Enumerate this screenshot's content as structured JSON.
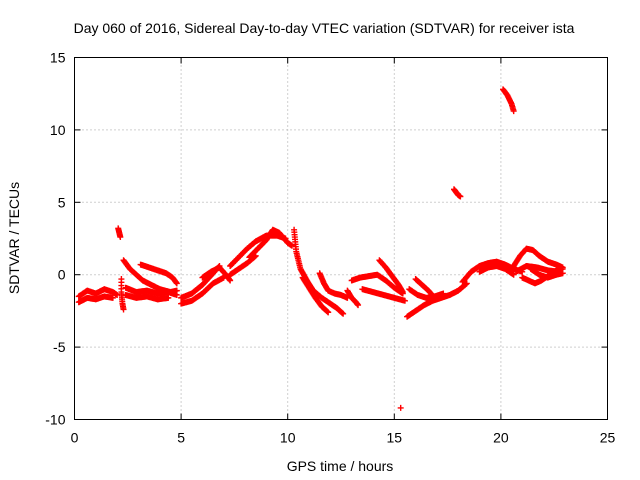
{
  "chart_data": {
    "type": "scatter",
    "title": "Day 060 of 2016, Sidereal Day-to-day VTEC variation (SDTVAR) for receiver ista",
    "xlabel": "GPS time / hours",
    "ylabel": "SDTVAR / TECUs",
    "xlim": [
      0,
      25
    ],
    "ylim": [
      -10,
      15
    ],
    "xticks": [
      0,
      5,
      10,
      15,
      20,
      25
    ],
    "yticks": [
      -10,
      -5,
      0,
      5,
      10,
      15
    ],
    "grid": true,
    "marker": "+",
    "color": "#ff0000",
    "segments": [
      {
        "name": "s1",
        "points": [
          [
            0.2,
            -1.5
          ],
          [
            0.6,
            -1.1
          ],
          [
            1.0,
            -1.3
          ],
          [
            1.4,
            -1.0
          ],
          [
            1.8,
            -1.2
          ],
          [
            2.0,
            -1.4
          ]
        ]
      },
      {
        "name": "s2",
        "points": [
          [
            0.2,
            -1.9
          ],
          [
            0.6,
            -1.6
          ],
          [
            1.0,
            -1.7
          ],
          [
            1.4,
            -1.5
          ],
          [
            1.8,
            -1.6
          ]
        ]
      },
      {
        "name": "s3",
        "points": [
          [
            2.05,
            3.2
          ],
          [
            2.1,
            2.9
          ],
          [
            2.15,
            2.6
          ]
        ]
      },
      {
        "name": "s4",
        "points": [
          [
            2.2,
            -0.3
          ],
          [
            2.2,
            -1.2
          ],
          [
            2.25,
            -2.0
          ],
          [
            2.3,
            -2.4
          ]
        ]
      },
      {
        "name": "s5",
        "points": [
          [
            2.3,
            1.0
          ],
          [
            2.6,
            0.4
          ],
          [
            2.9,
            0.0
          ],
          [
            3.2,
            -0.4
          ],
          [
            3.6,
            -0.7
          ],
          [
            4.0,
            -1.0
          ],
          [
            4.5,
            -1.2
          ],
          [
            4.8,
            -1.1
          ]
        ]
      },
      {
        "name": "s6",
        "points": [
          [
            2.4,
            -0.9
          ],
          [
            2.9,
            -1.2
          ],
          [
            3.4,
            -1.1
          ],
          [
            3.9,
            -1.3
          ],
          [
            4.4,
            -1.2
          ],
          [
            4.8,
            -1.4
          ]
        ]
      },
      {
        "name": "s7",
        "points": [
          [
            2.4,
            -1.4
          ],
          [
            2.9,
            -1.6
          ],
          [
            3.4,
            -1.5
          ],
          [
            3.9,
            -1.7
          ],
          [
            4.4,
            -1.6
          ]
        ]
      },
      {
        "name": "s8",
        "points": [
          [
            3.1,
            0.7
          ],
          [
            3.5,
            0.5
          ],
          [
            3.9,
            0.3
          ],
          [
            4.3,
            0.1
          ],
          [
            4.6,
            -0.2
          ],
          [
            4.8,
            -0.6
          ]
        ]
      },
      {
        "name": "s9",
        "points": [
          [
            5.0,
            -1.6
          ],
          [
            5.5,
            -1.3
          ],
          [
            6.0,
            -0.7
          ],
          [
            6.5,
            0.1
          ],
          [
            6.8,
            0.6
          ]
        ]
      },
      {
        "name": "s10",
        "points": [
          [
            5.0,
            -2.0
          ],
          [
            5.5,
            -1.8
          ],
          [
            6.0,
            -1.3
          ],
          [
            6.5,
            -0.6
          ],
          [
            7.0,
            -0.2
          ]
        ]
      },
      {
        "name": "s11",
        "points": [
          [
            6.0,
            -0.2
          ],
          [
            6.4,
            0.2
          ],
          [
            6.8,
            0.5
          ],
          [
            7.1,
            0.0
          ],
          [
            7.3,
            -0.4
          ]
        ]
      },
      {
        "name": "s12",
        "points": [
          [
            7.3,
            0.6
          ],
          [
            7.7,
            1.2
          ],
          [
            8.1,
            1.8
          ],
          [
            8.5,
            2.3
          ],
          [
            9.0,
            2.7
          ],
          [
            9.5,
            2.7
          ],
          [
            9.9,
            2.5
          ]
        ]
      },
      {
        "name": "s13",
        "points": [
          [
            7.3,
            0.0
          ],
          [
            7.7,
            0.4
          ],
          [
            8.1,
            0.8
          ],
          [
            8.5,
            1.3
          ]
        ]
      },
      {
        "name": "s14",
        "points": [
          [
            8.2,
            1.2
          ],
          [
            8.6,
            1.8
          ],
          [
            9.0,
            2.4
          ],
          [
            9.3,
            3.1
          ],
          [
            9.6,
            2.9
          ],
          [
            10.0,
            2.2
          ],
          [
            10.2,
            2.0
          ]
        ]
      },
      {
        "name": "s15",
        "points": [
          [
            10.3,
            3.1
          ],
          [
            10.4,
            1.6
          ],
          [
            10.6,
            0.4
          ],
          [
            10.9,
            -0.4
          ],
          [
            11.2,
            -1.1
          ],
          [
            11.6,
            -1.6
          ],
          [
            12.0,
            -2.0
          ],
          [
            12.3,
            -2.3
          ],
          [
            12.6,
            -2.7
          ]
        ]
      },
      {
        "name": "s16",
        "points": [
          [
            10.7,
            -0.2
          ],
          [
            11.0,
            -0.9
          ],
          [
            11.3,
            -1.6
          ],
          [
            11.6,
            -2.2
          ],
          [
            11.9,
            -2.6
          ]
        ]
      },
      {
        "name": "s17",
        "points": [
          [
            11.5,
            0.1
          ],
          [
            11.7,
            -0.6
          ],
          [
            11.9,
            -1.1
          ],
          [
            12.2,
            -1.3
          ],
          [
            12.5,
            -1.4
          ],
          [
            12.8,
            -1.6
          ]
        ]
      },
      {
        "name": "s18",
        "points": [
          [
            12.8,
            -1.1
          ],
          [
            13.0,
            -1.6
          ],
          [
            13.2,
            -1.9
          ],
          [
            13.3,
            -2.1
          ]
        ]
      },
      {
        "name": "s19",
        "points": [
          [
            13.0,
            -0.4
          ],
          [
            13.4,
            -0.2
          ],
          [
            13.8,
            -0.1
          ],
          [
            14.2,
            0.0
          ],
          [
            14.6,
            -0.4
          ],
          [
            15.0,
            -0.9
          ],
          [
            15.4,
            -1.3
          ]
        ]
      },
      {
        "name": "s20",
        "points": [
          [
            13.5,
            -1.0
          ],
          [
            14.0,
            -1.2
          ],
          [
            14.5,
            -1.4
          ],
          [
            15.0,
            -1.6
          ],
          [
            15.5,
            -1.8
          ]
        ]
      },
      {
        "name": "s21",
        "points": [
          [
            14.3,
            1.0
          ],
          [
            14.6,
            0.5
          ],
          [
            14.9,
            -0.1
          ],
          [
            15.2,
            -0.7
          ],
          [
            15.4,
            -1.2
          ]
        ]
      },
      {
        "name": "s22",
        "points": [
          [
            15.3,
            -9.2
          ]
        ]
      },
      {
        "name": "s23",
        "points": [
          [
            15.6,
            -2.9
          ],
          [
            16.0,
            -2.5
          ],
          [
            16.4,
            -2.1
          ],
          [
            16.8,
            -1.8
          ],
          [
            17.2,
            -1.6
          ],
          [
            17.6,
            -1.4
          ],
          [
            18.0,
            -1.1
          ],
          [
            18.4,
            -0.6
          ]
        ]
      },
      {
        "name": "s24",
        "points": [
          [
            15.7,
            -1.0
          ],
          [
            16.1,
            -1.4
          ],
          [
            16.5,
            -1.6
          ],
          [
            16.9,
            -1.5
          ],
          [
            17.3,
            -1.3
          ]
        ]
      },
      {
        "name": "s25",
        "points": [
          [
            16.0,
            -0.3
          ],
          [
            16.3,
            -0.7
          ],
          [
            16.6,
            -1.1
          ],
          [
            16.9,
            -1.6
          ]
        ]
      },
      {
        "name": "s26",
        "points": [
          [
            17.8,
            5.9
          ],
          [
            17.9,
            5.7
          ],
          [
            18.0,
            5.5
          ],
          [
            18.1,
            5.4
          ]
        ]
      },
      {
        "name": "s27",
        "points": [
          [
            18.2,
            -0.5
          ],
          [
            18.6,
            0.2
          ],
          [
            19.0,
            0.6
          ],
          [
            19.4,
            0.8
          ],
          [
            19.8,
            0.9
          ],
          [
            20.2,
            0.7
          ],
          [
            20.6,
            0.4
          ],
          [
            21.0,
            0.2
          ]
        ]
      },
      {
        "name": "s28",
        "points": [
          [
            19.0,
            0.2
          ],
          [
            19.4,
            0.5
          ],
          [
            19.8,
            0.6
          ],
          [
            20.2,
            0.4
          ],
          [
            20.6,
            0.0
          ]
        ]
      },
      {
        "name": "s29",
        "points": [
          [
            20.1,
            12.8
          ],
          [
            20.3,
            12.4
          ],
          [
            20.5,
            11.8
          ],
          [
            20.6,
            11.3
          ]
        ]
      },
      {
        "name": "s30",
        "points": [
          [
            20.6,
            0.6
          ],
          [
            20.9,
            1.3
          ],
          [
            21.2,
            1.8
          ],
          [
            21.5,
            1.7
          ],
          [
            21.8,
            1.3
          ],
          [
            22.2,
            0.9
          ],
          [
            22.6,
            0.7
          ],
          [
            22.9,
            0.5
          ]
        ]
      },
      {
        "name": "s31",
        "points": [
          [
            21.0,
            -0.2
          ],
          [
            21.3,
            -0.4
          ],
          [
            21.6,
            -0.6
          ],
          [
            21.9,
            -0.4
          ],
          [
            22.2,
            -0.1
          ],
          [
            22.6,
            0.3
          ],
          [
            22.9,
            0.4
          ]
        ]
      },
      {
        "name": "s32",
        "points": [
          [
            20.7,
            0.2
          ],
          [
            21.2,
            0.6
          ],
          [
            21.7,
            0.5
          ],
          [
            22.2,
            0.3
          ],
          [
            22.7,
            0.2
          ]
        ]
      },
      {
        "name": "s33",
        "points": [
          [
            21.4,
            0.4
          ],
          [
            21.8,
            0.0
          ],
          [
            22.2,
            -0.2
          ],
          [
            22.6,
            0.0
          ],
          [
            22.9,
            0.1
          ]
        ]
      }
    ]
  }
}
